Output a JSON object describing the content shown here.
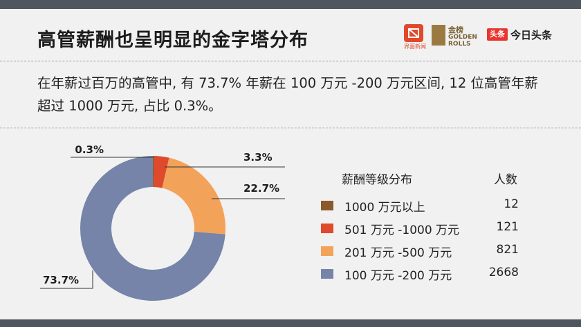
{
  "header": {
    "title": "高管薪酬也呈明显的金字塔分布",
    "logos": {
      "jiemian": "界面新闻",
      "golden_rolls_cn": "金榜",
      "golden_rolls_en_1": "GOLDEN",
      "golden_rolls_en_2": "ROLLS",
      "toutiao_badge": "头条",
      "toutiao": "今日头条"
    }
  },
  "summary": "在年薪过百万的高管中, 有 73.7% 年薪在 100 万元 -200 万元区间, 12 位高管年薪超过 1000 万元, 占比 0.3%。",
  "legend": {
    "category_header": "薪酬等级分布",
    "count_header": "人数"
  },
  "chart_data": {
    "type": "pie",
    "donut": true,
    "title": "",
    "legend_placement": "right",
    "categories": [
      "1000 万元以上",
      "501 万元 -1000 万元",
      "201 万元 -500 万元",
      "100 万元 -200 万元"
    ],
    "counts": [
      "12",
      "121",
      "821",
      "2668"
    ],
    "values": [
      0.3,
      3.3,
      22.7,
      73.7
    ],
    "labels": [
      "0.3%",
      "3.3%",
      "22.7%",
      "73.7%"
    ],
    "colors": [
      "#8a5a2b",
      "#e04a2c",
      "#f3a25a",
      "#7584a8"
    ]
  },
  "colors": {
    "bar": "#4f5660",
    "background": "#f1f1f1"
  }
}
